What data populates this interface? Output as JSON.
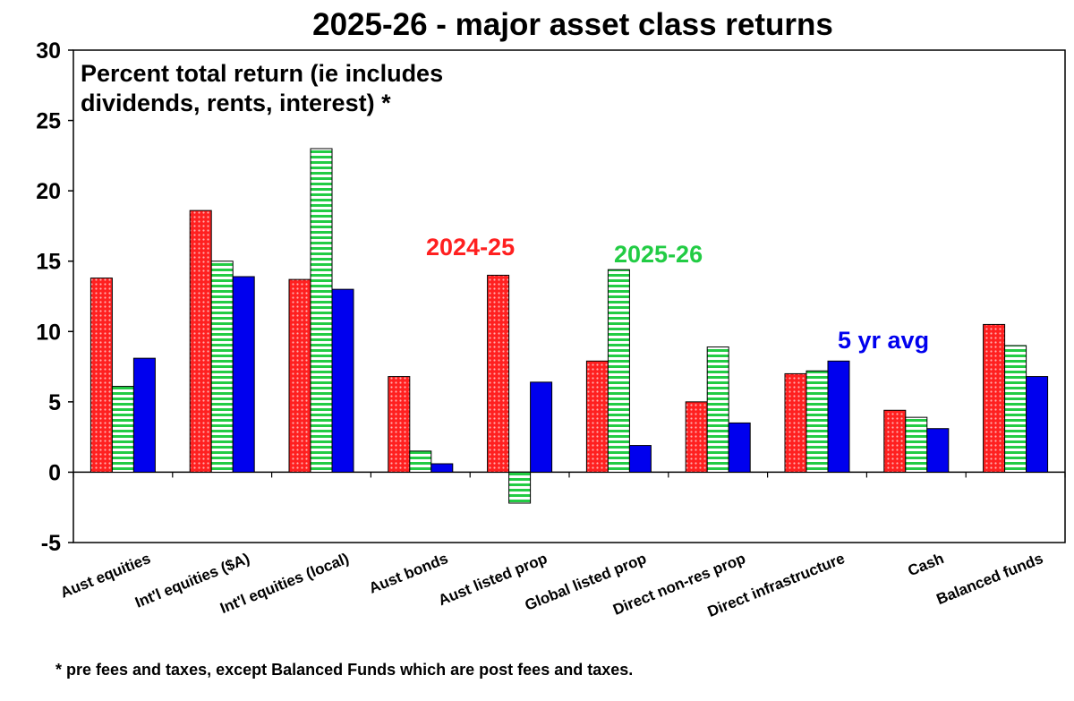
{
  "chart_data": {
    "type": "bar",
    "title": "2025-26 - major asset class returns",
    "subtitle": "Percent total return (ie includes dividends, rents, interest) *",
    "footnote": "* pre fees and taxes, except Balanced Funds which are post fees and taxes.",
    "categories": [
      "Aust equities",
      "Int'l equities ($A)",
      "Int'l equities (local)",
      "Aust bonds",
      "Aust listed prop",
      "Global listed prop",
      "Direct non-res prop",
      "Direct infrastructure",
      "Cash",
      "Balanced funds"
    ],
    "series": [
      {
        "name": "2024-25",
        "color": "#ff2020",
        "pattern": "dots",
        "values": [
          13.8,
          18.6,
          13.7,
          6.8,
          14.0,
          7.9,
          5.0,
          7.0,
          4.4,
          10.5
        ]
      },
      {
        "name": "2025-26",
        "color": "#22cc44",
        "pattern": "horizontal-stripes",
        "values": [
          6.1,
          15.0,
          23.0,
          1.5,
          -2.2,
          14.4,
          8.9,
          7.2,
          3.9,
          9.0
        ]
      },
      {
        "name": "5 yr avg",
        "color": "#0000ee",
        "pattern": "solid",
        "values": [
          8.1,
          13.9,
          13.0,
          0.6,
          6.4,
          1.9,
          3.5,
          7.9,
          3.1,
          6.8
        ]
      }
    ],
    "ylim": [
      -5,
      30
    ],
    "yticks": [
      -5,
      0,
      5,
      10,
      15,
      20,
      25,
      30
    ],
    "xlabel": "",
    "ylabel": "",
    "legend": "in-plot labels",
    "grid": false
  }
}
